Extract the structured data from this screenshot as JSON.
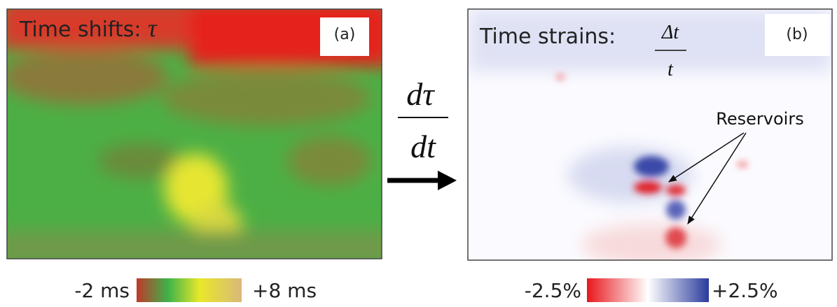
{
  "panel_a": {
    "title": "Time shifts:",
    "symbol": "τ",
    "tag": "(a)",
    "scale_min": "-2 ms",
    "scale_max": "+8 ms"
  },
  "operator": {
    "numerator": "dτ",
    "denominator": "dt"
  },
  "panel_b": {
    "title": "Time strains:",
    "symbol_numerator": "Δt",
    "symbol_denominator": "t",
    "tag": "(b)",
    "annotation": "Reservoirs",
    "scale_min": "-2.5%",
    "scale_max": "+2.5%"
  }
}
